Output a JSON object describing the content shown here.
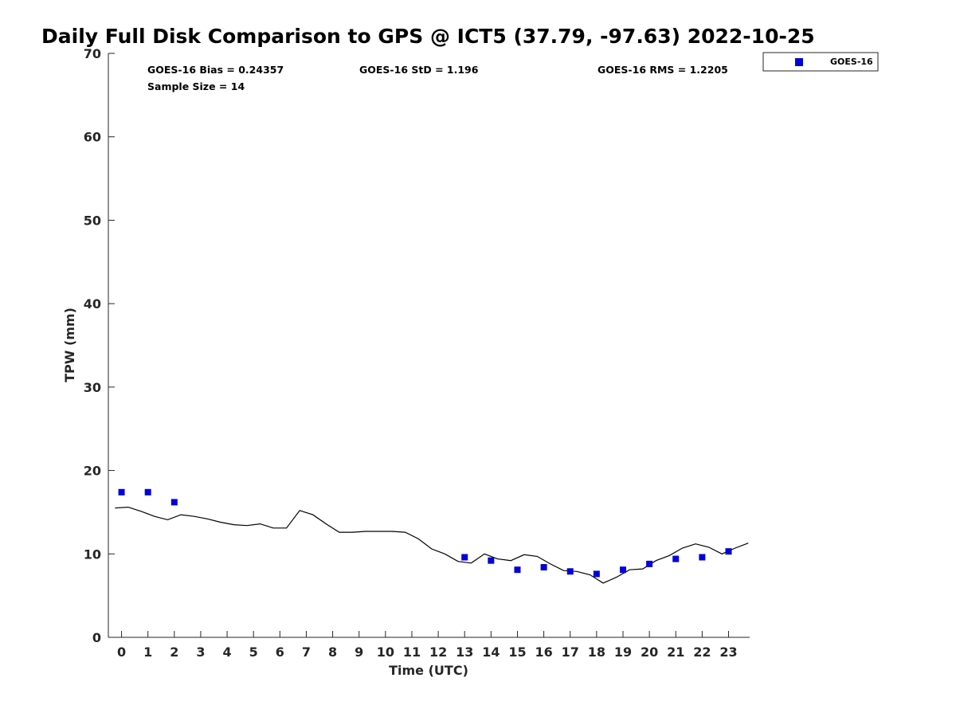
{
  "chart_data": {
    "type": "line",
    "title": "Daily Full Disk Comparison to GPS @ ICT5 (37.79, -97.63) 2022-10-25",
    "xlabel": "Time (UTC)",
    "ylabel": "TPW (mm)",
    "xlim": [
      -0.5,
      23.8
    ],
    "ylim": [
      0,
      70
    ],
    "xticks": [
      0,
      1,
      2,
      3,
      4,
      5,
      6,
      7,
      8,
      9,
      10,
      11,
      12,
      13,
      14,
      15,
      16,
      17,
      18,
      19,
      20,
      21,
      22,
      23
    ],
    "yticks": [
      0,
      10,
      20,
      30,
      40,
      50,
      60,
      70
    ],
    "grid": false,
    "legend_position": "outside-top-right",
    "stats": {
      "bias": "GOES-16 Bias = 0.24357",
      "std": "GOES-16 StD = 1.196",
      "rms": "GOES-16 RMS = 1.2205",
      "sample": "Sample Size = 14"
    },
    "series": [
      {
        "name": "",
        "kind": "line",
        "color": "#000000",
        "x": [
          -0.25,
          0.25,
          0.75,
          1.25,
          1.75,
          2.25,
          2.75,
          3.25,
          3.75,
          4.25,
          4.75,
          5.25,
          5.75,
          6.25,
          6.75,
          7.25,
          7.75,
          8.25,
          8.75,
          9.25,
          9.75,
          10.25,
          10.75,
          11.25,
          11.75,
          12.25,
          12.75,
          13.25,
          13.75,
          14.25,
          14.75,
          15.25,
          15.75,
          16.25,
          16.75,
          17.25,
          17.75,
          18.25,
          18.75,
          19.25,
          19.75,
          20.25,
          20.75,
          21.25,
          21.75,
          22.25,
          22.75,
          23.25,
          23.75
        ],
        "y": [
          15.5,
          15.6,
          15.1,
          14.5,
          14.1,
          14.7,
          14.5,
          14.2,
          13.8,
          13.5,
          13.4,
          13.6,
          13.1,
          13.1,
          15.2,
          14.7,
          13.6,
          12.6,
          12.6,
          12.7,
          12.7,
          12.7,
          12.6,
          11.8,
          10.6,
          10.0,
          9.1,
          8.9,
          10.0,
          9.4,
          9.2,
          9.9,
          9.7,
          8.8,
          8.0,
          7.9,
          7.5,
          6.5,
          7.2,
          8.1,
          8.2,
          9.2,
          9.8,
          10.7,
          11.2,
          10.8,
          10.0,
          10.7,
          11.3
        ]
      },
      {
        "name": "GOES-16",
        "kind": "scatter",
        "color": "#0000dd",
        "x": [
          0,
          1,
          2,
          13,
          14,
          15,
          16,
          17,
          18,
          19,
          20,
          21,
          22,
          23
        ],
        "y": [
          17.4,
          17.4,
          16.2,
          9.6,
          9.2,
          8.1,
          8.4,
          7.9,
          7.6,
          8.1,
          8.8,
          9.4,
          9.6,
          10.3
        ]
      }
    ]
  }
}
